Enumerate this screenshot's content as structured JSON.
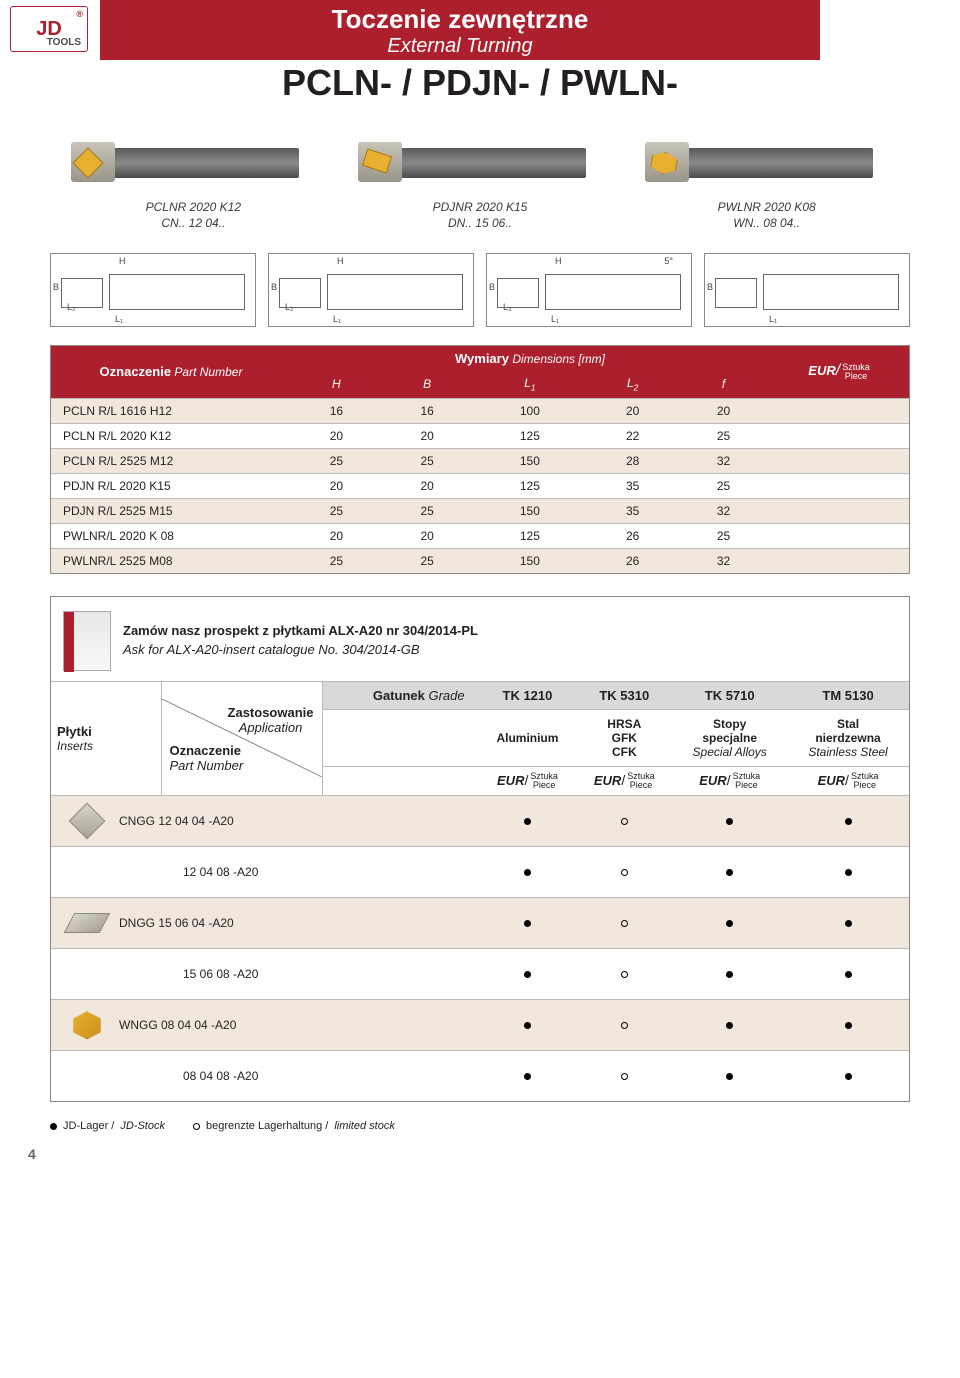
{
  "logo": {
    "brand": "JD",
    "reg": "®",
    "sub": "TOOLS"
  },
  "header": {
    "title_pl": "Toczenie zewnętrzne",
    "title_en": "External Turning",
    "big": "PCLN-  /  PDJN-  /  PWLN-"
  },
  "photos": [
    {
      "cap1": "PCLNR 2020 K12",
      "cap2": "CN.. 12 04.."
    },
    {
      "cap1": "PDJNR 2020 K15",
      "cap2": "DN.. 15 06.."
    },
    {
      "cap1": "PWLNR 2020 K08",
      "cap2": "WN.. 08 04.."
    }
  ],
  "dim": {
    "pn_label_pl": "Oznaczenie",
    "pn_label_en": "Part Number",
    "wymiary_pl": "Wymiary",
    "wymiary_en": "Dimensions [mm]",
    "cols": [
      "H",
      "B",
      "L₁",
      "L₂",
      "f"
    ],
    "eur": "EUR",
    "sztuka": "Sztuka",
    "piece": "Piece",
    "rows": [
      {
        "pn": "PCLN R/L 1616 H12",
        "v": [
          "16",
          "16",
          "100",
          "20",
          "20"
        ]
      },
      {
        "pn": "PCLN R/L 2020 K12",
        "v": [
          "20",
          "20",
          "125",
          "22",
          "25"
        ]
      },
      {
        "pn": "PCLN R/L 2525 M12",
        "v": [
          "25",
          "25",
          "150",
          "28",
          "32"
        ]
      },
      {
        "pn": "PDJN R/L 2020 K15",
        "v": [
          "20",
          "20",
          "125",
          "35",
          "25"
        ]
      },
      {
        "pn": "PDJN R/L 2525 M15",
        "v": [
          "25",
          "25",
          "150",
          "35",
          "32"
        ]
      },
      {
        "pn": "PWLNR/L 2020 K 08",
        "v": [
          "20",
          "20",
          "125",
          "26",
          "25"
        ]
      },
      {
        "pn": "PWLNR/L 2525 M08",
        "v": [
          "25",
          "25",
          "150",
          "26",
          "32"
        ]
      }
    ]
  },
  "prospect": {
    "l1": "Zamów nasz prospekt z płytkami ALX-A20 nr 304/2014-PL",
    "l2": "Ask for ALX-A20-insert catalogue No. 304/2014-GB"
  },
  "ins": {
    "plytki": "Płytki",
    "inserts": "Inserts",
    "gatunek": "Gatunek",
    "grade_en": "Grade",
    "zast": "Zastosowanie",
    "app_en": "Application",
    "ozn": "Oznaczenie",
    "pn_en": "Part Number",
    "grades": [
      "TK 1210",
      "TK 5310",
      "TK 5710",
      "TM 5130"
    ],
    "apps": [
      {
        "l1": "Aluminium",
        "l2": ""
      },
      {
        "l1": "HRSA",
        "l2": "GFK",
        "l3": "CFK"
      },
      {
        "l1": "Stopy",
        "l2": "specjalne",
        "l3en": "Special Alloys"
      },
      {
        "l1": "Stal",
        "l2": "nierdzewna",
        "l3en": "Stainless Steel"
      }
    ],
    "eur": "EUR",
    "sztuka": "Sztuka",
    "piece": "Piece",
    "rows": [
      {
        "shape": "diamond",
        "pn": "CNGG  12 04 04   -A20",
        "m": [
          "f",
          "o",
          "f",
          "f"
        ]
      },
      {
        "shape": "",
        "pn": "12 04 08   -A20",
        "m": [
          "f",
          "o",
          "f",
          "f"
        ]
      },
      {
        "shape": "rhomb",
        "pn": "DNGG  15 06 04   -A20",
        "m": [
          "f",
          "o",
          "f",
          "f"
        ]
      },
      {
        "shape": "",
        "pn": "15 06 08   -A20",
        "m": [
          "f",
          "o",
          "f",
          "f"
        ]
      },
      {
        "shape": "trigon",
        "pn": "WNGG  08 04 04   -A20",
        "m": [
          "f",
          "o",
          "f",
          "f"
        ]
      },
      {
        "shape": "",
        "pn": "08 04 08   -A20",
        "m": [
          "f",
          "o",
          "f",
          "f"
        ]
      }
    ]
  },
  "legend": {
    "a": "JD-Lager / ",
    "a2": "JD-Stock",
    "b": "begrenzte Lagerhaltung / ",
    "b2": "limited stock"
  },
  "page_no": "4",
  "colors": {
    "brand": "#ac1f2d",
    "stripe": "#f2e7dc",
    "grey": "#d9d9d9"
  }
}
